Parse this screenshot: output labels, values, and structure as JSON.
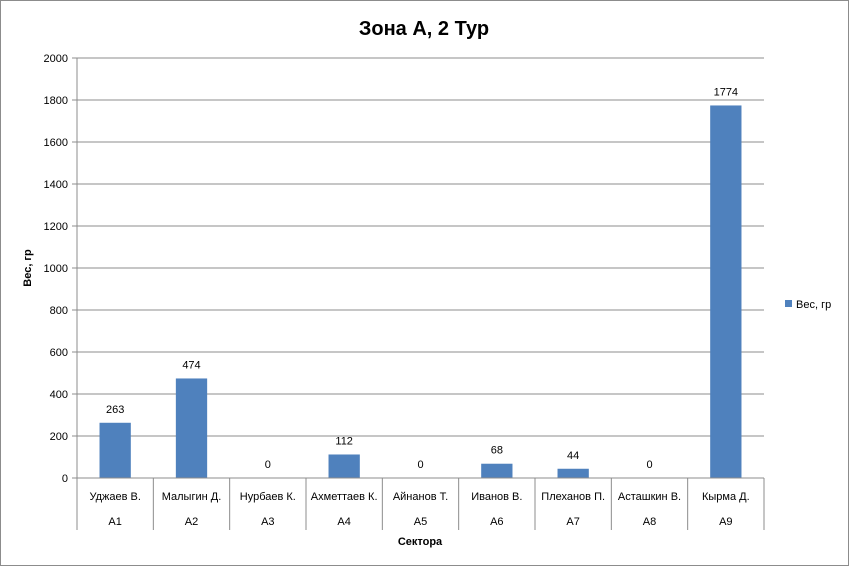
{
  "chart_data": {
    "type": "bar",
    "title": "Зона А, 2 Тур",
    "xlabel": "Сектора",
    "ylabel": "Вес, гр",
    "ylim": [
      0,
      2000
    ],
    "ytick_step": 200,
    "grid": true,
    "legend_position": "right",
    "categories": [
      {
        "name": "Уджаев В.",
        "sector": "А1"
      },
      {
        "name": "Малыгин Д.",
        "sector": "А2"
      },
      {
        "name": "Нурбаев К.",
        "sector": "А3"
      },
      {
        "name": "Ахметтаев К.",
        "sector": "А4"
      },
      {
        "name": "Айнанов Т.",
        "sector": "А5"
      },
      {
        "name": "Иванов В.",
        "sector": "А6"
      },
      {
        "name": "Плеханов П.",
        "sector": "А7"
      },
      {
        "name": "Асташкин В.",
        "sector": "А8"
      },
      {
        "name": "Кырма Д.",
        "sector": "А9"
      }
    ],
    "series": [
      {
        "name": "Вес, гр",
        "color": "#4f81bd",
        "values": [
          263,
          474,
          0,
          112,
          0,
          68,
          44,
          0,
          1774
        ]
      }
    ]
  }
}
